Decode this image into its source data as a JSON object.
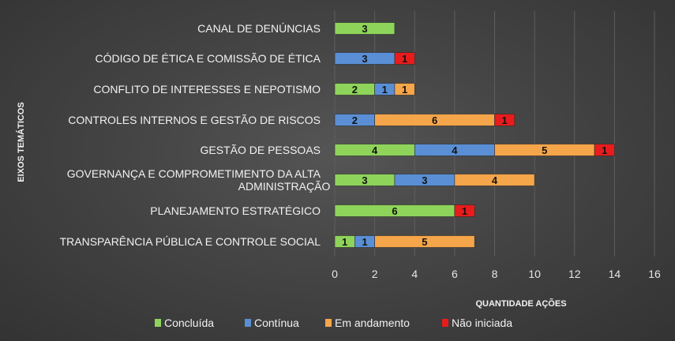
{
  "chart_data": {
    "type": "bar",
    "orientation": "horizontal",
    "stacked": true,
    "title": "",
    "xlabel": "QUANTIDADE AÇÕES",
    "ylabel": "EIXOS TEMÁTICOS",
    "xlim": [
      0,
      16
    ],
    "x_ticks": [
      "0",
      "2",
      "4",
      "6",
      "8",
      "10",
      "12",
      "14",
      "16"
    ],
    "grid": "vertical",
    "legend_position": "bottom",
    "categories": [
      [
        "CANAL DE DENÚNCIAS"
      ],
      [
        "CÓDIGO DE ÉTICA E COMISSÃO DE ÉTICA"
      ],
      [
        "CONFLITO DE INTERESSES E NEPOTISMO"
      ],
      [
        "CONTROLES INTERNOS E GESTÃO DE RISCOS"
      ],
      [
        "GESTÃO DE PESSOAS"
      ],
      [
        "GOVERNANÇA E COMPROMETIMENTO DA ALTA",
        "ADMINISTRAÇÃO"
      ],
      [
        "PLANEJAMENTO ESTRATÉGICO"
      ],
      [
        "TRANSPARÊNCIA PÚBLICA E CONTROLE SOCIAL"
      ]
    ],
    "series": [
      {
        "name": "Concluída",
        "color": "#8ed45a",
        "values": [
          3,
          0,
          2,
          0,
          4,
          3,
          6,
          1
        ]
      },
      {
        "name": "Contínua",
        "color": "#5a8fd6",
        "values": [
          0,
          3,
          1,
          2,
          4,
          3,
          0,
          1
        ]
      },
      {
        "name": "Em andamento",
        "color": "#f5a54a",
        "values": [
          0,
          0,
          1,
          6,
          5,
          4,
          0,
          5
        ]
      },
      {
        "name": "Não iniciada",
        "color": "#e81c1c",
        "values": [
          0,
          1,
          0,
          1,
          1,
          0,
          1,
          0
        ]
      }
    ],
    "data_labels": [
      [
        3,
        null,
        null,
        null
      ],
      [
        null,
        3,
        null,
        1
      ],
      [
        2,
        1,
        1,
        null
      ],
      [
        null,
        2,
        6,
        1
      ],
      [
        4,
        4,
        5,
        1
      ],
      [
        3,
        3,
        4,
        null
      ],
      [
        6,
        null,
        null,
        1
      ],
      [
        1,
        1,
        5,
        null
      ]
    ]
  }
}
